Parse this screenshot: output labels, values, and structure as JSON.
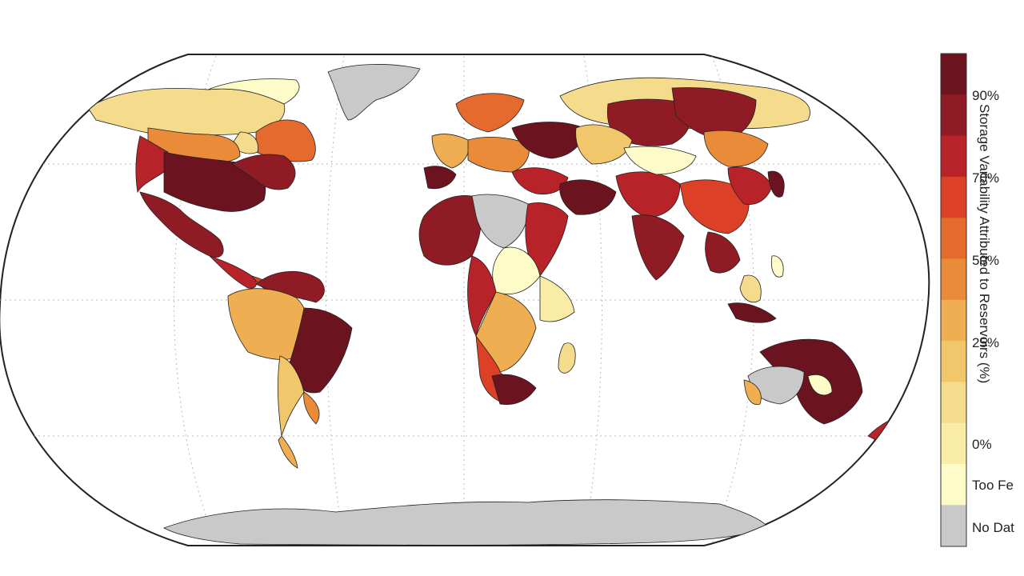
{
  "legend": {
    "title": "Storage Variability Attributed to Reservoirs (%)",
    "ticks": [
      "90%",
      "70%",
      "50%",
      "25%",
      "0%"
    ],
    "too_few_label": "Too Fe",
    "no_data_label": "No Dat",
    "color_scale": [
      "#fdfbc8",
      "#f8eca6",
      "#f5dc8c",
      "#f2c76c",
      "#efae52",
      "#ea8b3a",
      "#e46a2e",
      "#dc4127",
      "#b8232a",
      "#8f1b24",
      "#6b1420"
    ],
    "too_few_color": "#c9c9c9",
    "no_data_color": "#ffffff"
  },
  "map": {
    "ocean_color": "#ffffff",
    "land_no_data": "#ffffff",
    "antarctica_color": "#c9c9c9",
    "greenland_color": "#c9c9c9"
  }
}
